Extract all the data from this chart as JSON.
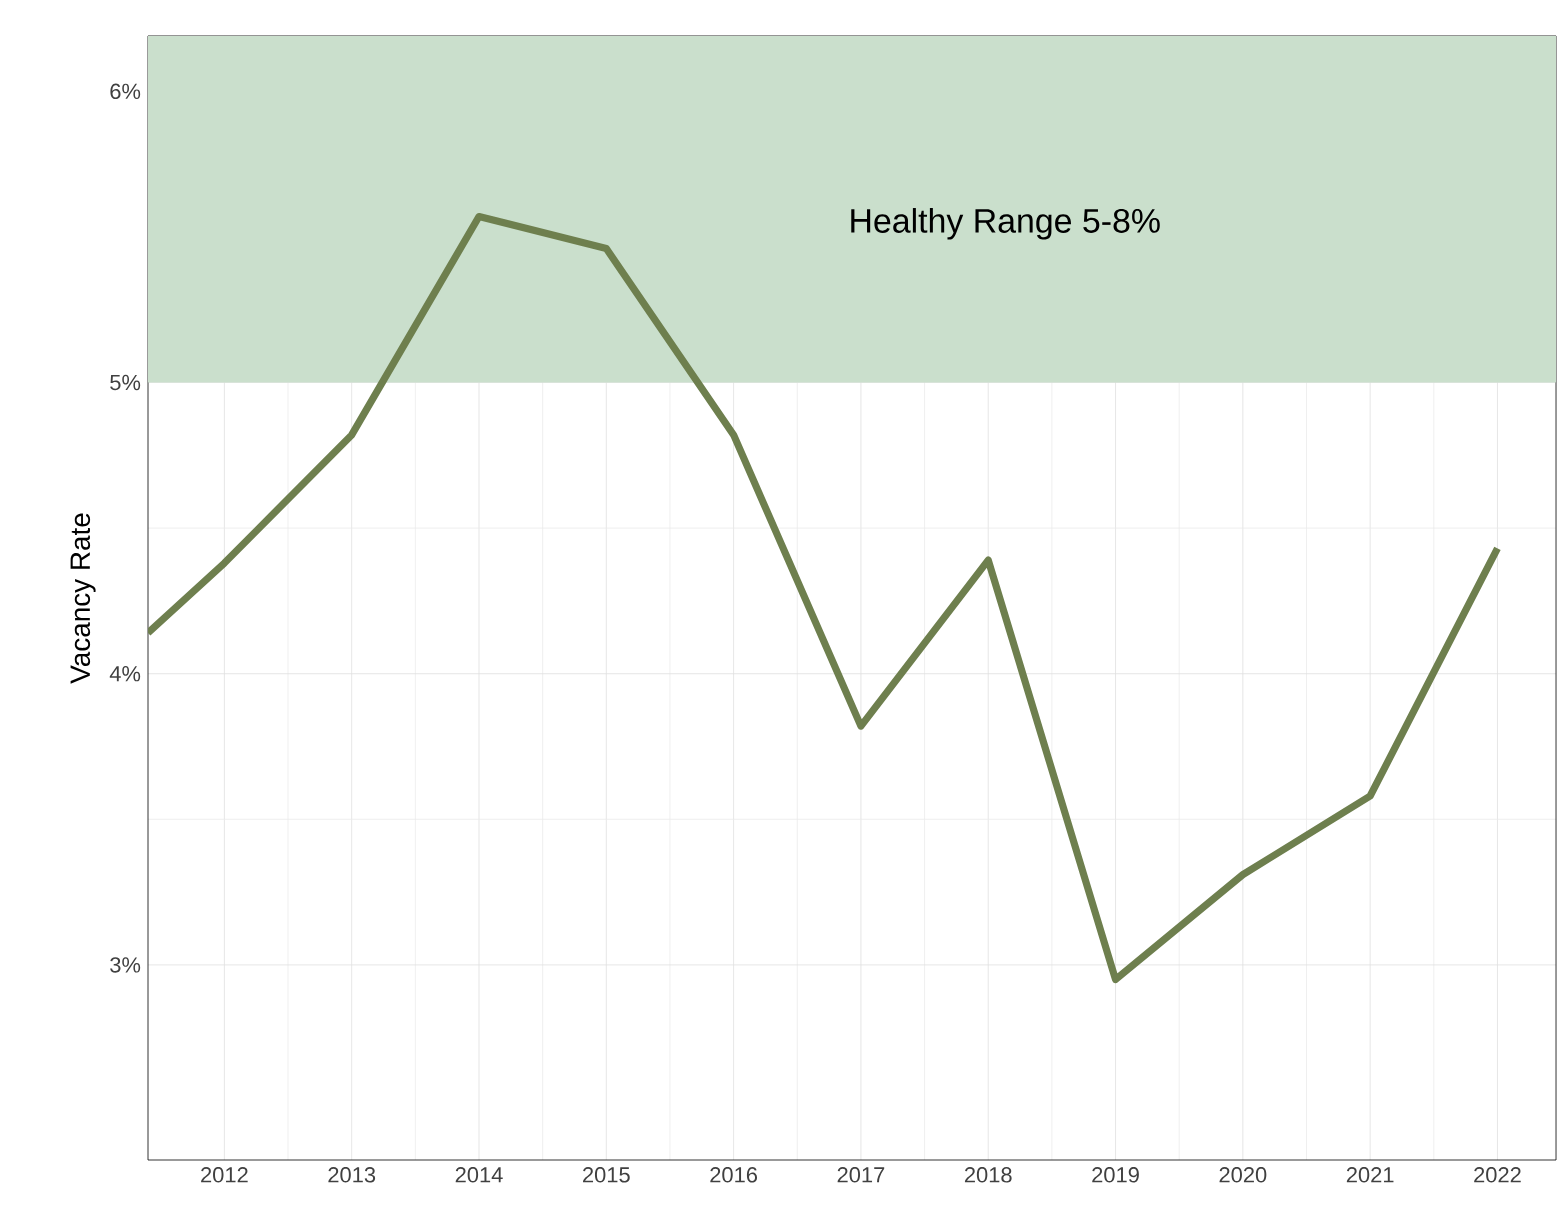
{
  "chart_data": {
    "type": "line",
    "ylabel": "Vacancy Rate",
    "x": [
      2011.4,
      2012,
      2013,
      2014,
      2015,
      2016,
      2017,
      2018,
      2019,
      2020,
      2021,
      2022
    ],
    "series": [
      {
        "color": "#6e7f4e",
        "values": [
          4.14,
          4.38,
          4.82,
          5.57,
          5.46,
          4.82,
          3.82,
          4.39,
          2.95,
          3.31,
          3.58,
          4.43
        ]
      }
    ],
    "xlim": [
      2011.4,
      2022.46
    ],
    "xticks": [
      2012,
      2013,
      2014,
      2015,
      2016,
      2017,
      2018,
      2019,
      2020,
      2021,
      2022
    ],
    "ylim": [
      2.33,
      6.19
    ],
    "yticks": [
      {
        "value": 3,
        "label": "3%"
      },
      {
        "value": 4,
        "label": "4%"
      },
      {
        "value": 5,
        "label": "5%"
      },
      {
        "value": 6,
        "label": "6%"
      }
    ],
    "bands": [
      {
        "axis": "y",
        "from": 5,
        "to": 8,
        "label": "Healthy Range 5-8%",
        "color": "#cadfcc"
      }
    ],
    "grid": true,
    "marker": "none",
    "line_style": "solid"
  }
}
